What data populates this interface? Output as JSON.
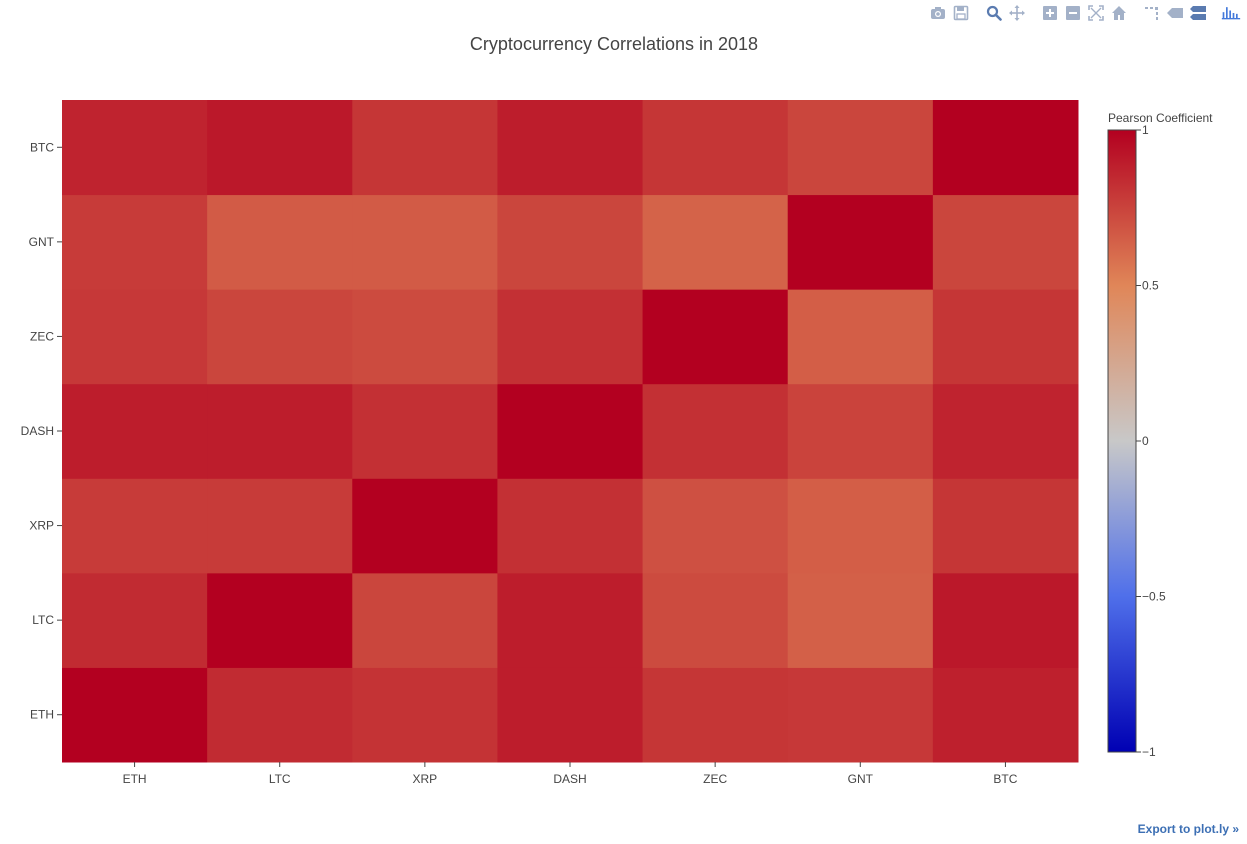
{
  "modebar": {
    "icons": [
      "camera-icon",
      "save-icon",
      "zoom-icon",
      "pan-icon",
      "zoom-in-icon",
      "zoom-out-icon",
      "autoscale-icon",
      "reset-axes-icon",
      "spike-lines-icon",
      "hover-closest-icon",
      "hover-compare-icon",
      "plotly-logo-icon"
    ],
    "icon_color": "#a3b1c8",
    "active_color": "#5a7bb0",
    "logo_color": "#447adb"
  },
  "export_link": "Export to plot.ly »",
  "chart_data": {
    "type": "heatmap",
    "title": "Cryptocurrency Correlations in 2018",
    "x_categories": [
      "ETH",
      "LTC",
      "XRP",
      "DASH",
      "ZEC",
      "GNT",
      "BTC"
    ],
    "y_categories": [
      "ETH",
      "LTC",
      "XRP",
      "DASH",
      "ZEC",
      "GNT",
      "BTC"
    ],
    "z": [
      [
        1.0,
        0.84,
        0.81,
        0.89,
        0.8,
        0.79,
        0.88
      ],
      [
        0.84,
        1.0,
        0.74,
        0.89,
        0.72,
        0.64,
        0.91
      ],
      [
        0.78,
        0.78,
        1.0,
        0.82,
        0.7,
        0.65,
        0.8
      ],
      [
        0.89,
        0.89,
        0.82,
        1.0,
        0.82,
        0.75,
        0.87
      ],
      [
        0.79,
        0.74,
        0.72,
        0.82,
        1.0,
        0.65,
        0.8
      ],
      [
        0.78,
        0.66,
        0.66,
        0.74,
        0.63,
        1.0,
        0.74
      ],
      [
        0.87,
        0.91,
        0.8,
        0.89,
        0.8,
        0.74,
        1.0
      ]
    ],
    "colorbar": {
      "title": "Pearson Coefficient",
      "range": [
        -1,
        1
      ],
      "ticks": [
        1,
        0.5,
        0,
        -0.5,
        -1
      ],
      "tick_labels": [
        "1",
        "0.5",
        "0",
        "−0.5",
        "−1"
      ]
    },
    "colorscale": [
      [
        0,
        "#0000b3"
      ],
      [
        0.25,
        "#4f6fea"
      ],
      [
        0.5,
        "#c8c8c8"
      ],
      [
        0.75,
        "#e08658"
      ],
      [
        1,
        "#b30020"
      ]
    ]
  }
}
